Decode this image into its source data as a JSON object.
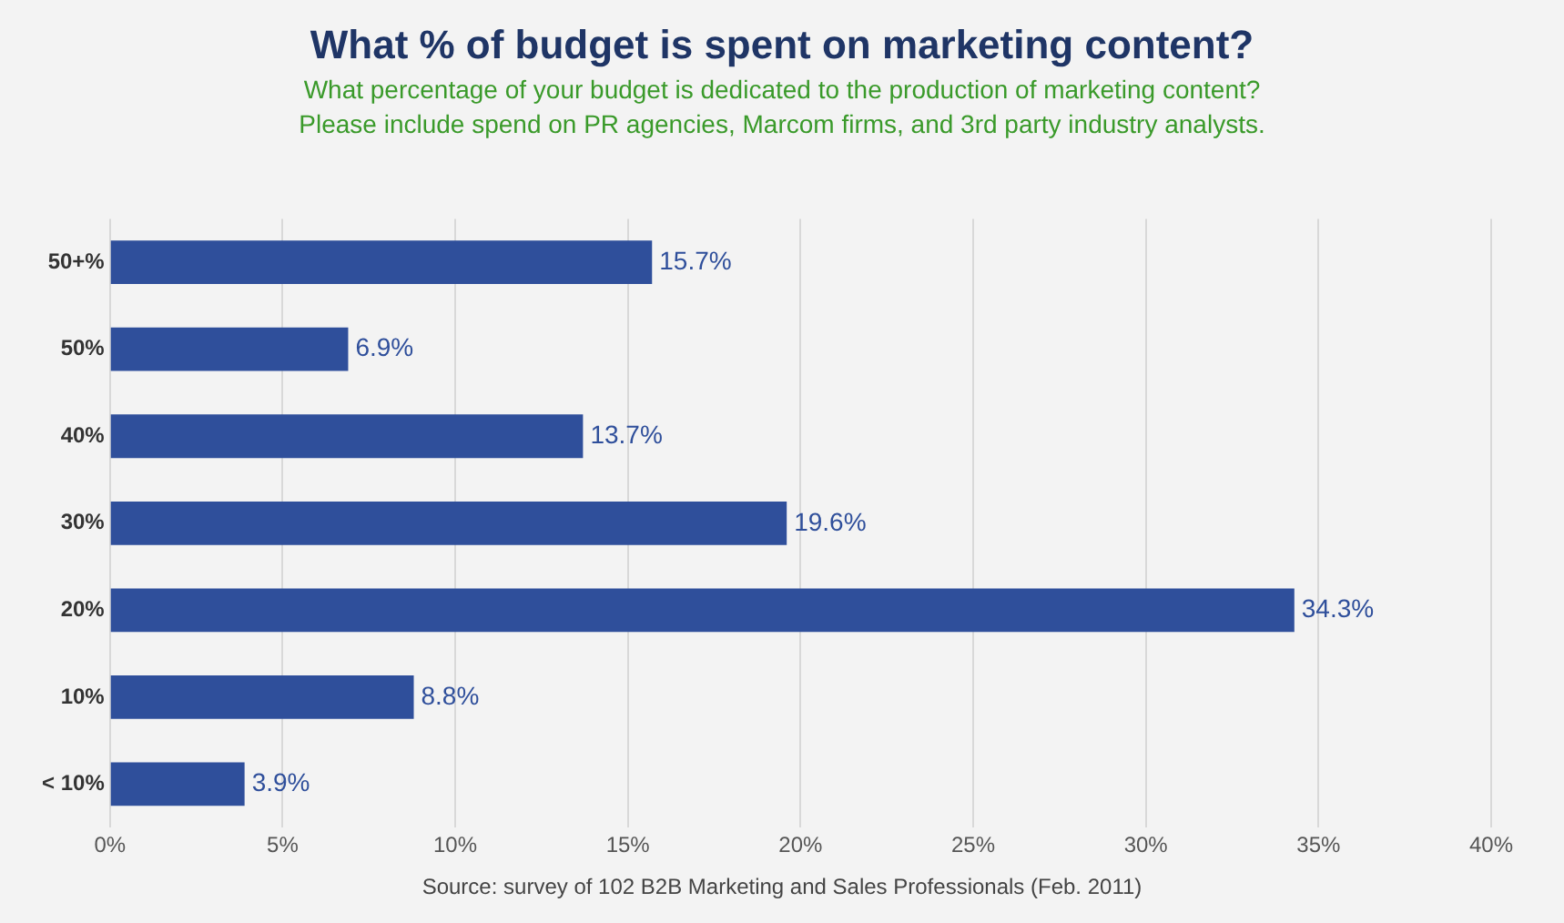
{
  "chart_data": {
    "type": "bar",
    "orientation": "horizontal",
    "title": "What % of budget is spent on marketing content?",
    "subtitle": "What percentage of your budget is dedicated to the production of marketing content?\nPlease include spend on PR agencies, Marcom firms, and 3rd party industry analysts.",
    "categories": [
      "50+%",
      "50%",
      "40%",
      "30%",
      "20%",
      "10%",
      "< 10%"
    ],
    "values": [
      15.7,
      6.9,
      13.7,
      19.6,
      34.3,
      8.8,
      3.9
    ],
    "value_labels": [
      "15.7%",
      "6.9%",
      "13.7%",
      "19.6%",
      "34.3%",
      "8.8%",
      "3.9%"
    ],
    "color": "#2f4f9b",
    "xlim": [
      0,
      40
    ],
    "xticks": [
      {
        "value": 0,
        "label": "0%"
      },
      {
        "value": 5,
        "label": "5%"
      },
      {
        "value": 10,
        "label": "10%"
      },
      {
        "value": 15,
        "label": "15%"
      },
      {
        "value": 20,
        "label": "20%"
      },
      {
        "value": 25,
        "label": "25%"
      },
      {
        "value": 30,
        "label": "30%"
      },
      {
        "value": 35,
        "label": "35%"
      },
      {
        "value": 40,
        "label": "40%"
      }
    ],
    "grid": "x",
    "legend": false,
    "annotations": [
      "Source: survey of 102 B2B Marketing and Sales Professionals (Feb. 2011)"
    ]
  }
}
